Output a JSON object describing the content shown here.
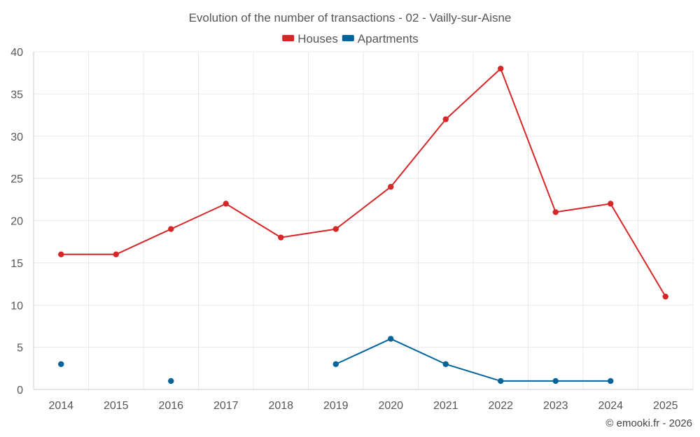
{
  "chart_data": {
    "type": "line",
    "title": "Evolution of the number of transactions - 02 - Vailly-sur-Aisne",
    "categories": [
      "2014",
      "2015",
      "2016",
      "2017",
      "2018",
      "2019",
      "2020",
      "2021",
      "2022",
      "2023",
      "2024",
      "2025"
    ],
    "ylim": [
      0,
      40
    ],
    "yticks": [
      0,
      5,
      10,
      15,
      20,
      25,
      30,
      35,
      40
    ],
    "grid": true,
    "legend_position": "top-center",
    "series": [
      {
        "name": "Houses",
        "color": "#d62728",
        "values": [
          16,
          16,
          19,
          22,
          18,
          19,
          24,
          32,
          38,
          21,
          22,
          11
        ]
      },
      {
        "name": "Apartments",
        "color": "#00639a",
        "values": [
          3,
          null,
          1,
          null,
          null,
          3,
          6,
          3,
          1,
          1,
          1,
          null
        ]
      }
    ]
  },
  "credit": "© emooki.fr - 2026"
}
